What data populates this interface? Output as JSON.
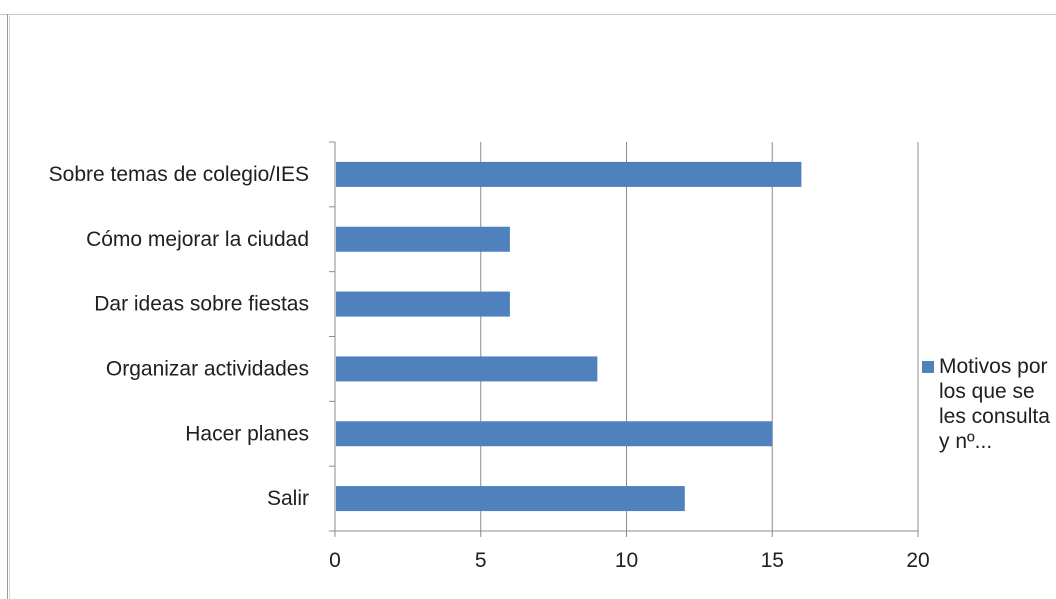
{
  "chart_data": {
    "type": "bar",
    "orientation": "horizontal",
    "categories": [
      "Sobre temas de colegio/IES",
      "Cómo mejorar la ciudad",
      "Dar ideas sobre fiestas",
      "Organizar actividades",
      "Hacer planes",
      "Salir"
    ],
    "series": [
      {
        "name": "Motivos por los que se les consulta y nº...",
        "values": [
          16,
          6,
          6,
          9,
          15,
          12
        ]
      }
    ],
    "x_ticks": [
      "0",
      "5",
      "10",
      "15",
      "20"
    ],
    "xlim": [
      0,
      20
    ],
    "grid": true,
    "legend_position": "right",
    "bar_color": "#4f81bd",
    "title": "",
    "xlabel": "",
    "ylabel": ""
  }
}
